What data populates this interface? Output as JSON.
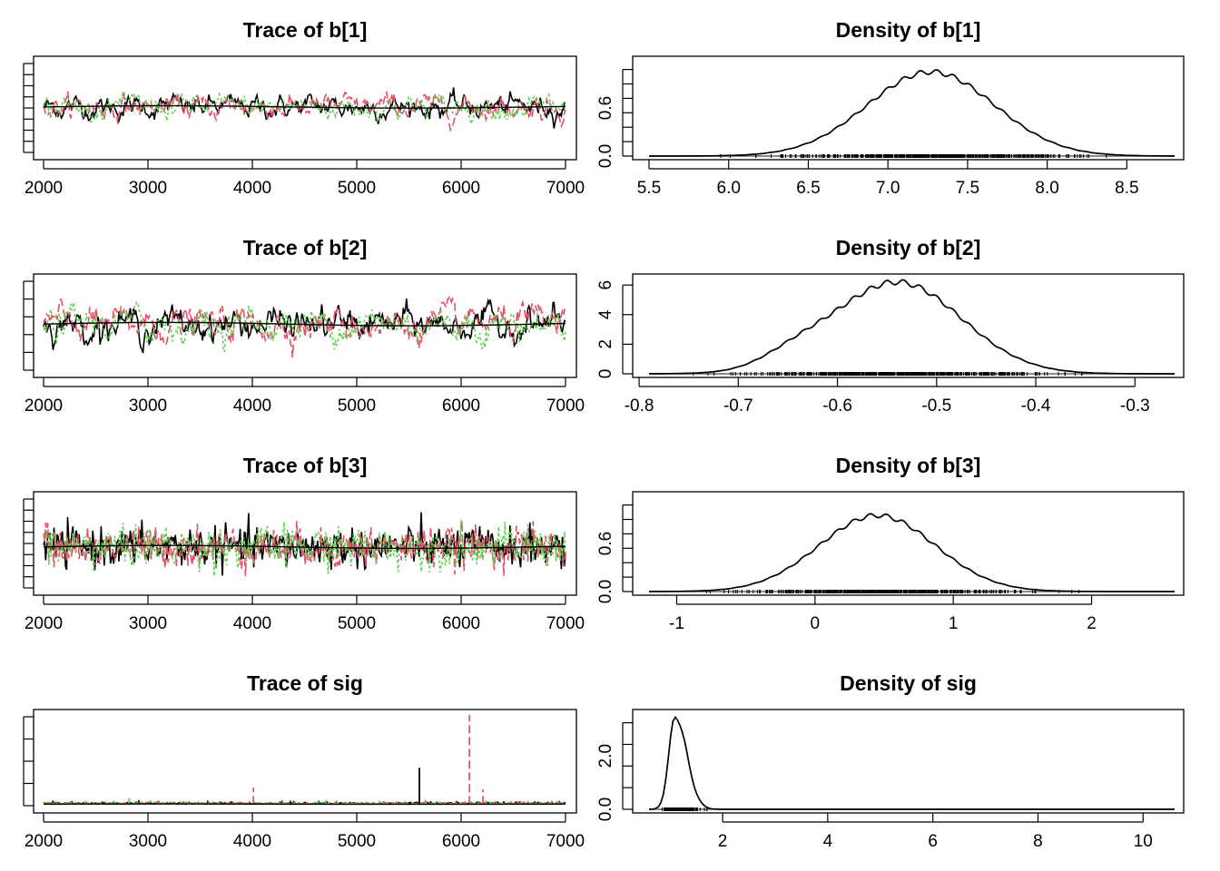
{
  "chart_data": [
    {
      "id": "trace_b1",
      "type": "line",
      "title": "Trace of b[1]",
      "x_ticks": [
        "2000",
        "3000",
        "4000",
        "5000",
        "6000",
        "7000"
      ],
      "xlim": [
        2000,
        7000
      ],
      "y_ticks": [],
      "ylim": [
        4.9,
        9.6
      ],
      "center": 7.3,
      "spread": 0.38,
      "smooth": 0.45,
      "series_colors": [
        "#000000",
        "#DF536B",
        "#61D04F"
      ],
      "ticks_unlabeled": 9
    },
    {
      "id": "density_b1",
      "type": "line",
      "title": "Density of b[1]",
      "x_ticks": [
        "5.5",
        "6.0",
        "6.5",
        "7.0",
        "7.5",
        "8.0",
        "8.5"
      ],
      "xlim": [
        5.5,
        8.8
      ],
      "y_ticks": [
        "0.0",
        "0.6"
      ],
      "ylim": [
        0,
        1.2
      ],
      "mode": 7.27,
      "sd": 0.4,
      "peak": 1.05,
      "shoulders": 0,
      "rug": [
        5.7,
        8.5
      ],
      "ticks_unlabeled": 7
    },
    {
      "id": "trace_b2",
      "type": "line",
      "title": "Trace of b[2]",
      "x_ticks": [
        "2000",
        "3000",
        "4000",
        "5000",
        "6000",
        "7000"
      ],
      "xlim": [
        2000,
        7000
      ],
      "y_ticks": [],
      "ylim": [
        -0.85,
        -0.25
      ],
      "center": -0.54,
      "spread": 0.07,
      "smooth": 0.45,
      "series_colors": [
        "#000000",
        "#DF536B",
        "#61D04F"
      ],
      "ticks_unlabeled": 6
    },
    {
      "id": "density_b2",
      "type": "line",
      "title": "Density of b[2]",
      "x_ticks": [
        "-0.8",
        "-0.7",
        "-0.6",
        "-0.5",
        "-0.4",
        "-0.3"
      ],
      "xlim": [
        -0.79,
        -0.26
      ],
      "y_ticks": [
        "0",
        "2",
        "4",
        "6"
      ],
      "ylim": [
        0,
        6.5
      ],
      "mode": -0.54,
      "sd": 0.065,
      "peak": 6.2,
      "shoulders": 1,
      "rug": [
        -0.77,
        -0.29
      ],
      "ticks_unlabeled": 0
    },
    {
      "id": "trace_b3",
      "type": "line",
      "title": "Trace of b[3]",
      "x_ticks": [
        "2000",
        "3000",
        "4000",
        "5000",
        "6000",
        "7000"
      ],
      "xlim": [
        2000,
        7000
      ],
      "y_ticks": [],
      "ylim": [
        -1.5,
        2.7
      ],
      "center": 0.45,
      "spread": 0.42,
      "smooth": 0.05,
      "series_colors": [
        "#000000",
        "#DF536B",
        "#61D04F"
      ],
      "ticks_unlabeled": 9
    },
    {
      "id": "density_b3",
      "type": "line",
      "title": "Density of b[3]",
      "x_ticks": [
        "-1",
        "0",
        "1",
        "2"
      ],
      "xlim": [
        -1.2,
        2.6
      ],
      "y_ticks": [
        "0.0",
        "0.6"
      ],
      "ylim": [
        0,
        1.2
      ],
      "mode": 0.45,
      "sd": 0.42,
      "peak": 0.95,
      "shoulders": 0,
      "rug": [
        -1.1,
        2.5
      ],
      "ticks_unlabeled": 7
    },
    {
      "id": "trace_sig",
      "type": "line",
      "title": "Trace of sig",
      "x_ticks": [
        "2000",
        "3000",
        "4000",
        "5000",
        "6000",
        "7000"
      ],
      "xlim": [
        2000,
        7000
      ],
      "y_ticks": [],
      "ylim": [
        0.6,
        10.8
      ],
      "center": 1.15,
      "spread": 0.1,
      "smooth": 0.1,
      "series_colors": [
        "#000000",
        "#DF536B",
        "#61D04F"
      ],
      "ticks_unlabeled": 5,
      "spikes": [
        {
          "x": 4010,
          "y": 2.9,
          "color": "#DF536B"
        },
        {
          "x": 5600,
          "y": 5.0,
          "color": "#000000"
        },
        {
          "x": 6080,
          "y": 10.6,
          "color": "#DF536B"
        },
        {
          "x": 6210,
          "y": 2.7,
          "color": "#DF536B"
        },
        {
          "x": 2820,
          "y": 1.8,
          "color": "#61D04F"
        }
      ]
    },
    {
      "id": "density_sig",
      "type": "line",
      "title": "Density of sig",
      "x_ticks": [
        "2",
        "4",
        "6",
        "8",
        "10"
      ],
      "xlim": [
        0.6,
        10.6
      ],
      "y_ticks": [
        "0.0",
        "2.0"
      ],
      "ylim": [
        0,
        3.6
      ],
      "mode": 1.1,
      "sd": 0.12,
      "peak": 3.5,
      "shoulders": 0,
      "skew": 1,
      "rug": [
        0.8,
        10.6
      ],
      "ticks_unlabeled": 5
    }
  ]
}
